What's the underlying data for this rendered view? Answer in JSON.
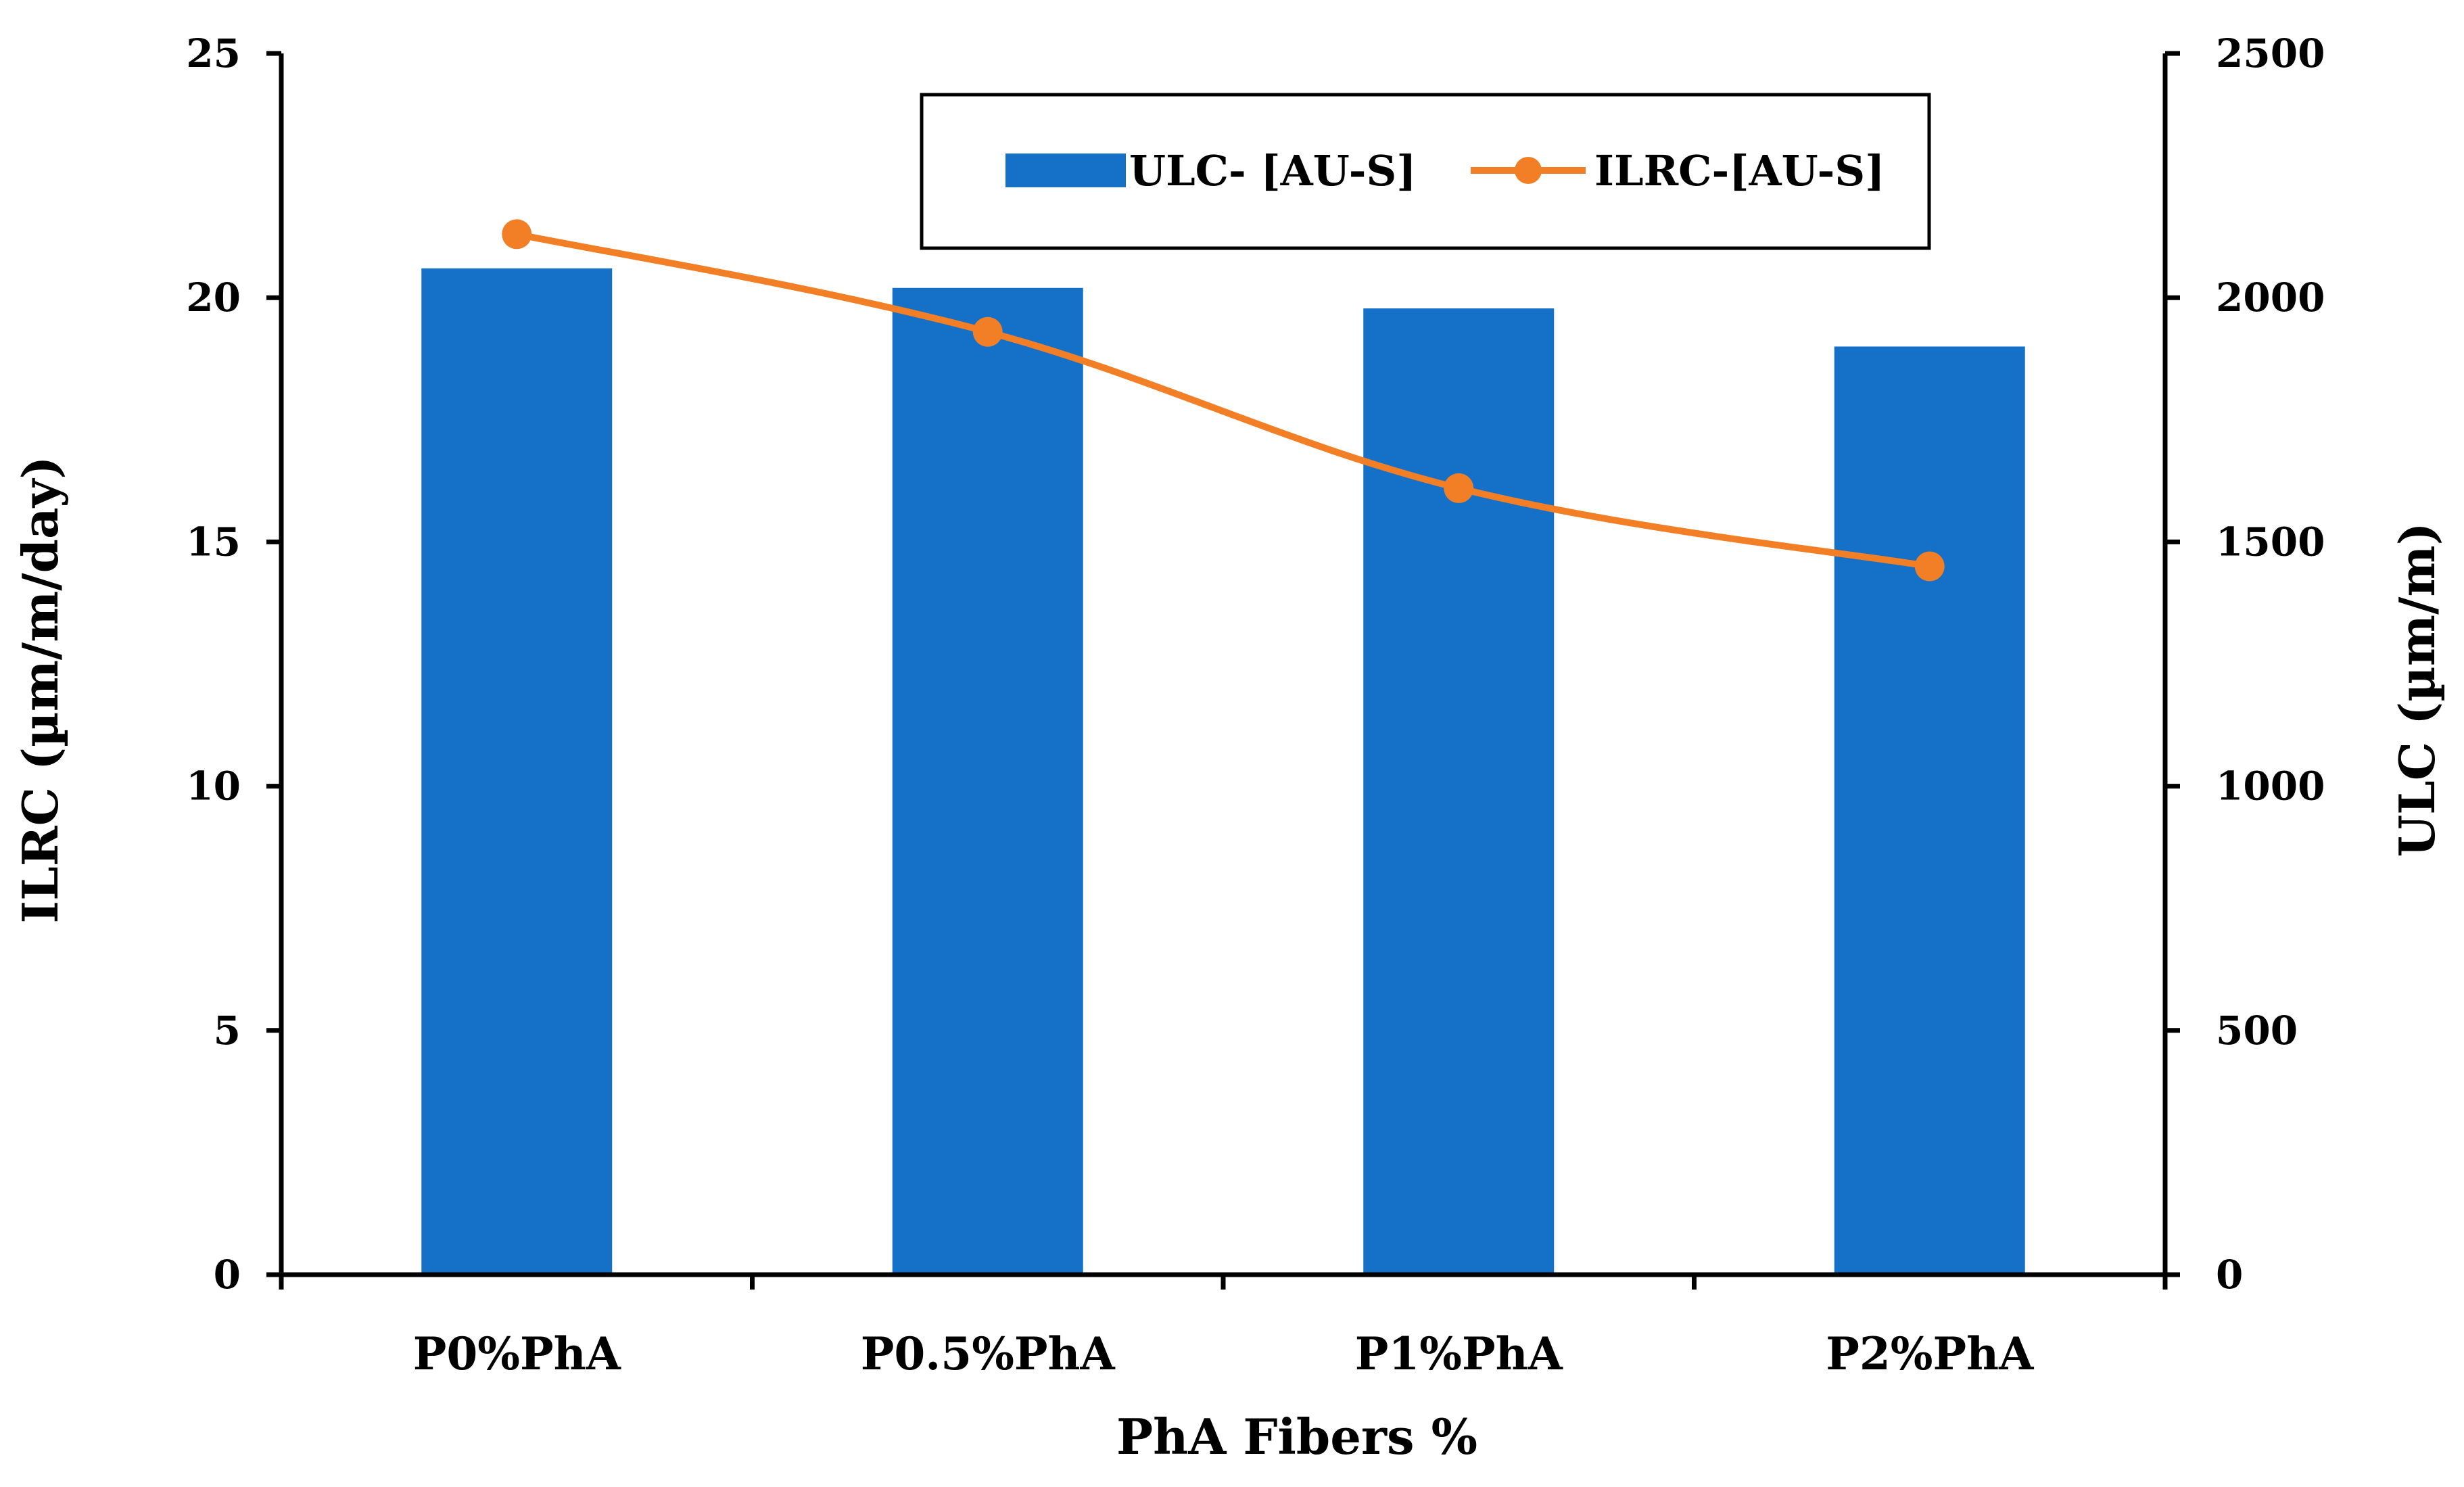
{
  "chart_data": {
    "type": "bar+line",
    "xlabel": "PhA Fibers %",
    "categories": [
      "P0%PhA",
      "P0.5%PhA",
      "P1%PhA",
      "P2%PhA"
    ],
    "left_axis": {
      "label": "ILRC (µm/m/day)",
      "ylim": [
        0,
        25
      ],
      "ticks": [
        0,
        5,
        10,
        15,
        20,
        25
      ]
    },
    "right_axis": {
      "label": "ULC (µm/m)",
      "ylim": [
        0,
        2500
      ],
      "ticks": [
        0,
        500,
        1000,
        1500,
        2000,
        2500
      ]
    },
    "series": [
      {
        "name": "ULC- [AU-S]",
        "kind": "bar",
        "axis": "right",
        "color": "#1570C8",
        "values": [
          2060,
          2020,
          1978,
          1900
        ]
      },
      {
        "name": "ILRC-[AU-S]",
        "kind": "line",
        "axis": "left",
        "color": "#F27F26",
        "values": [
          21.3,
          19.3,
          16.1,
          14.5
        ]
      }
    ],
    "legend": {
      "position": "top-center"
    },
    "grid": false
  }
}
